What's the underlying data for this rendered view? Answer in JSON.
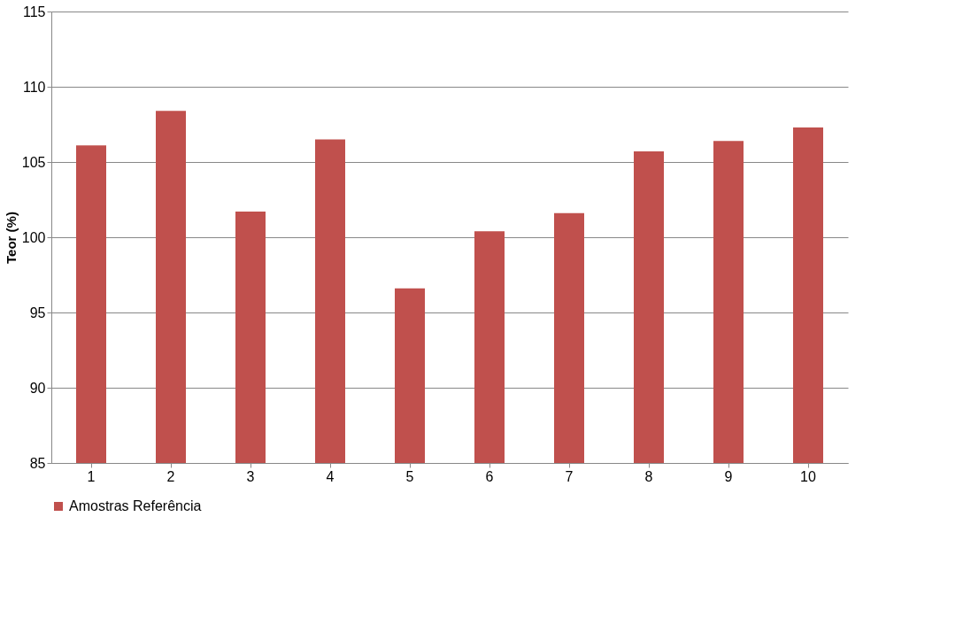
{
  "chart_data": {
    "type": "bar",
    "ylabel": "Teor (%)",
    "categories": [
      "1",
      "2",
      "3",
      "4",
      "5",
      "6",
      "7",
      "8",
      "9",
      "10"
    ],
    "series": [
      {
        "name": "Amostras Referência",
        "color": "#c0504d",
        "values": [
          106.1,
          108.4,
          101.7,
          106.5,
          96.6,
          100.4,
          101.6,
          105.7,
          106.4,
          107.3
        ]
      }
    ],
    "ylim": [
      85,
      115
    ],
    "yticks": [
      85,
      90,
      95,
      100,
      105,
      110,
      115
    ],
    "grid": "y",
    "legend": "bottom"
  }
}
